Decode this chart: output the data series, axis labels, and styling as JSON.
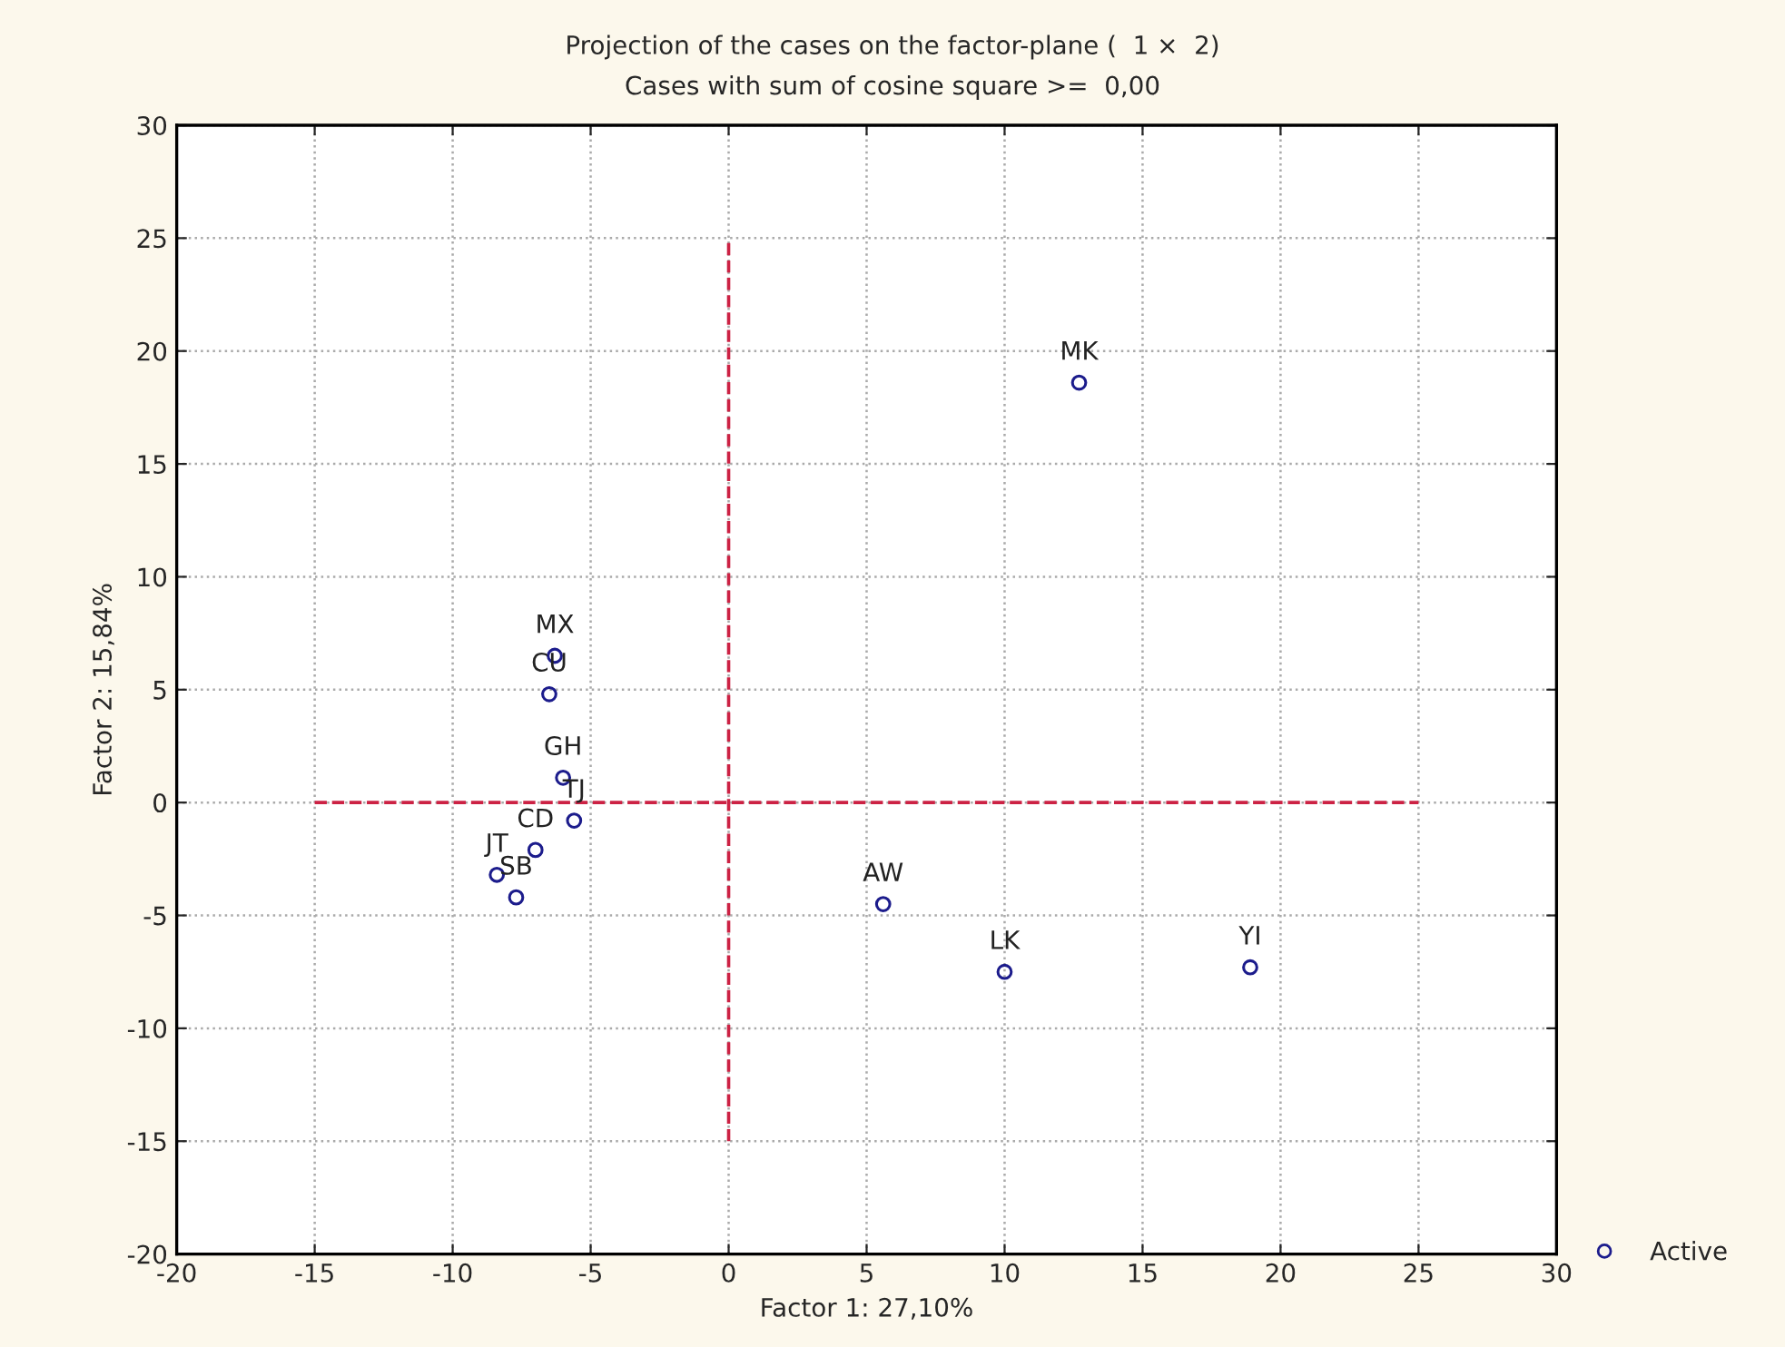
{
  "chart_data": {
    "type": "scatter",
    "title": "Projection of the cases on the factor-plane (  1 ×  2)",
    "subtitle": "Cases with sum of cosine square >=  0,00",
    "xlabel": "Factor 1: 27,10%",
    "ylabel": "Factor 2: 15,84%",
    "series": [
      {
        "name": "Active",
        "color": "#1c1c8c",
        "x": [
          12.7,
          -6.3,
          -6.5,
          -6.0,
          -5.6,
          -7.0,
          -8.4,
          -7.7,
          5.6,
          10.0,
          18.9
        ],
        "values": [
          18.6,
          6.5,
          4.8,
          1.1,
          -0.8,
          -2.1,
          -3.2,
          -4.2,
          -4.5,
          -7.5,
          -7.3
        ]
      },
      {
        "type": "line",
        "color": "#cc2244",
        "line_style": "dashed",
        "marker": "none",
        "x": [
          0,
          0
        ],
        "values": [
          -15,
          25
        ]
      },
      {
        "type": "line",
        "color": "#cc2244",
        "line_style": "dashed",
        "marker": "none",
        "x": [
          -15,
          25
        ],
        "values": [
          0,
          0
        ]
      }
    ],
    "annotations": [
      {
        "text": "MK",
        "x": 12.7,
        "y": 18.6
      },
      {
        "text": "MX",
        "x": -6.3,
        "y": 6.5
      },
      {
        "text": "CU",
        "x": -6.5,
        "y": 4.8
      },
      {
        "text": "GH",
        "x": -6.0,
        "y": 1.1
      },
      {
        "text": "TJ",
        "x": -5.6,
        "y": -0.8
      },
      {
        "text": "CD",
        "x": -7.0,
        "y": -2.1
      },
      {
        "text": "JT",
        "x": -8.4,
        "y": -3.2
      },
      {
        "text": "SB",
        "x": -7.7,
        "y": -4.2
      },
      {
        "text": "AW",
        "x": 5.6,
        "y": -4.5
      },
      {
        "text": "LK",
        "x": 10.0,
        "y": -7.5
      },
      {
        "text": "YI",
        "x": 18.9,
        "y": -7.3
      }
    ],
    "xlim": [
      -20,
      30
    ],
    "xticks": [
      -20,
      -15,
      -10,
      -5,
      0,
      5,
      10,
      15,
      20,
      25,
      30
    ],
    "ylim": [
      -20,
      30
    ],
    "yticks": [
      -20,
      -15,
      -10,
      -5,
      0,
      5,
      10,
      15,
      20,
      25,
      30
    ],
    "grid": true,
    "legend": "bottom right",
    "marker": "circle"
  }
}
